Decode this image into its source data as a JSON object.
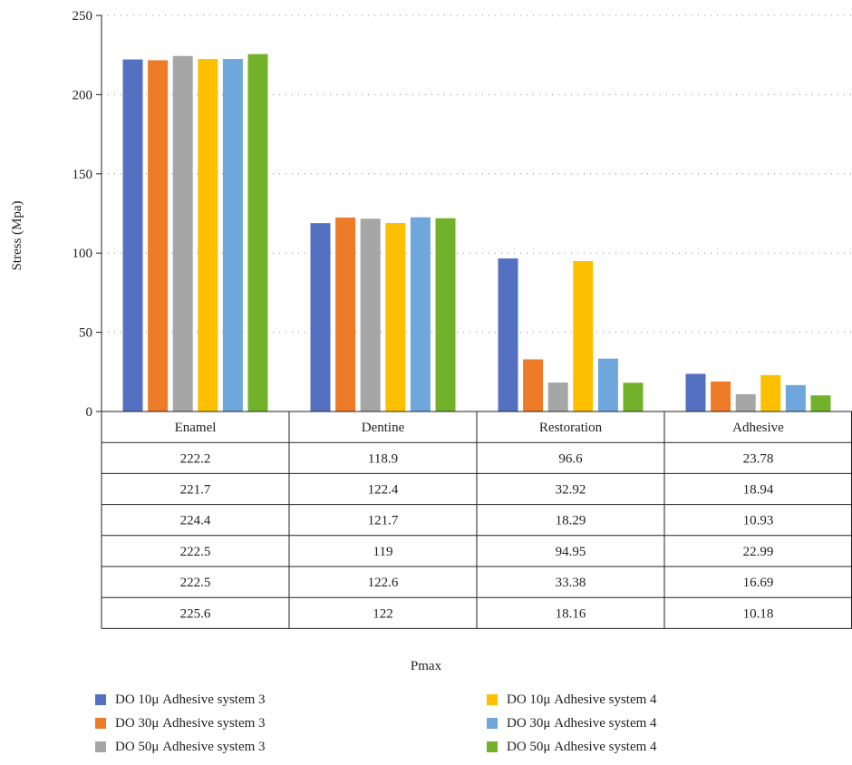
{
  "chart_data": {
    "type": "bar",
    "ylabel": "Stress (Mpa)",
    "xlabel": "Pmax",
    "ylim": [
      0,
      250
    ],
    "yticks": [
      0,
      50,
      100,
      150,
      200,
      250
    ],
    "grid": "horizontal dotted",
    "legend_position": "bottom",
    "categories": [
      "Enamel",
      "Dentine",
      "Restoration",
      "Adhesive"
    ],
    "series": [
      {
        "name": "DO 10μ Adhesive system 3",
        "color": "#5470c1",
        "values": [
          222.2,
          118.9,
          96.6,
          23.78
        ]
      },
      {
        "name": "DO 30μ Adhesive system 3",
        "color": "#ee7b27",
        "values": [
          221.7,
          122.4,
          32.92,
          18.94
        ]
      },
      {
        "name": "DO 50μ Adhesive system 3",
        "color": "#a6a6a6",
        "values": [
          224.4,
          121.7,
          18.29,
          10.93
        ]
      },
      {
        "name": "DO 10μ Adhesive system 4",
        "color": "#fcc000",
        "values": [
          222.5,
          119,
          94.95,
          22.99
        ]
      },
      {
        "name": "DO 30μ Adhesive system 4",
        "color": "#6fa6db",
        "values": [
          222.5,
          122.6,
          33.38,
          16.69
        ]
      },
      {
        "name": "DO 50μ Adhesive system 4",
        "color": "#72b22a",
        "values": [
          225.6,
          122,
          18.16,
          10.18
        ]
      }
    ],
    "table_rows": [
      [
        "222.2",
        "118.9",
        "96.6",
        "23.78"
      ],
      [
        "221.7",
        "122.4",
        "32.92",
        "18.94"
      ],
      [
        "224.4",
        "121.7",
        "18.29",
        "10.93"
      ],
      [
        "222.5",
        "119",
        "94.95",
        "22.99"
      ],
      [
        "222.5",
        "122.6",
        "33.38",
        "16.69"
      ],
      [
        "225.6",
        "122",
        "18.16",
        "10.18"
      ]
    ]
  }
}
